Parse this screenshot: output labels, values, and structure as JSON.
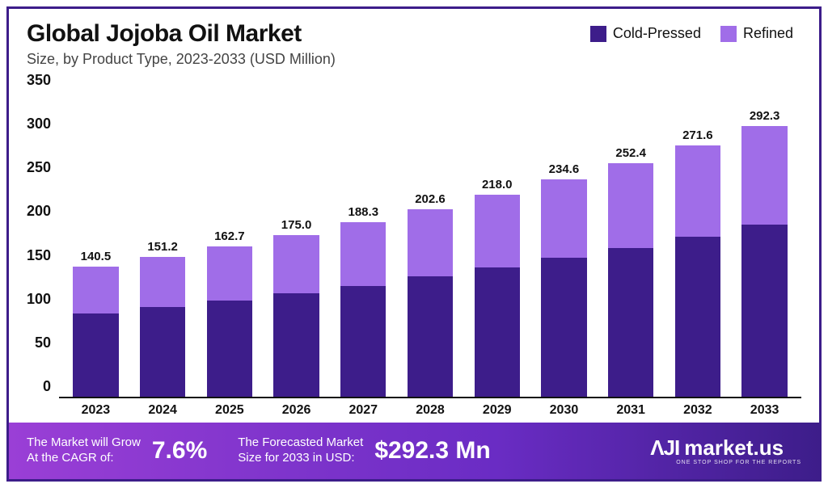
{
  "title": "Global Jojoba Oil Market",
  "subtitle": "Size, by Product Type, 2023-2033 (USD Million)",
  "legend": {
    "items": [
      {
        "label": "Cold-Pressed",
        "color": "#3d1d8a"
      },
      {
        "label": "Refined",
        "color": "#a06de8"
      }
    ]
  },
  "chart": {
    "type": "stacked-bar",
    "ymax": 350,
    "ytick_step": 50,
    "yticks": [
      "350",
      "300",
      "250",
      "200",
      "150",
      "100",
      "50",
      "0"
    ],
    "axis_color": "#111111",
    "background_color": "#ffffff",
    "bar_width_ratio": 0.68,
    "label_fontsize": 15,
    "tick_fontsize": 18,
    "colors": {
      "cold_pressed": "#3d1d8a",
      "refined": "#a06de8"
    },
    "categories": [
      "2023",
      "2024",
      "2025",
      "2026",
      "2027",
      "2028",
      "2029",
      "2030",
      "2031",
      "2032",
      "2033"
    ],
    "totals": [
      140.5,
      151.2,
      162.7,
      175.0,
      188.3,
      202.6,
      218.0,
      234.6,
      252.4,
      271.6,
      292.3
    ],
    "cold_pressed": [
      90.0,
      97.0,
      104.0,
      112.0,
      120.0,
      130.0,
      140.0,
      150.0,
      161.0,
      173.0,
      186.0
    ],
    "refined": [
      50.5,
      54.2,
      58.7,
      63.0,
      68.3,
      72.6,
      78.0,
      84.6,
      91.4,
      98.6,
      106.3
    ],
    "total_labels": [
      "140.5",
      "151.2",
      "162.7",
      "175.0",
      "188.3",
      "202.6",
      "218.0",
      "234.6",
      "252.4",
      "271.6",
      "292.3"
    ]
  },
  "footer": {
    "cagr_label": "The Market will Grow\nAt the CAGR of:",
    "cagr_value": "7.6%",
    "forecast_label": "The Forecasted Market\nSize for 2033 in USD:",
    "forecast_value": "$292.3 Mn",
    "logo_text": "market.us",
    "logo_sub": "ONE STOP SHOP FOR THE REPORTS",
    "bg_gradient_from": "#9a3fd6",
    "bg_gradient_to": "#3d1d8a",
    "text_color": "#ffffff"
  },
  "frame_border_color": "#3d1d8a"
}
